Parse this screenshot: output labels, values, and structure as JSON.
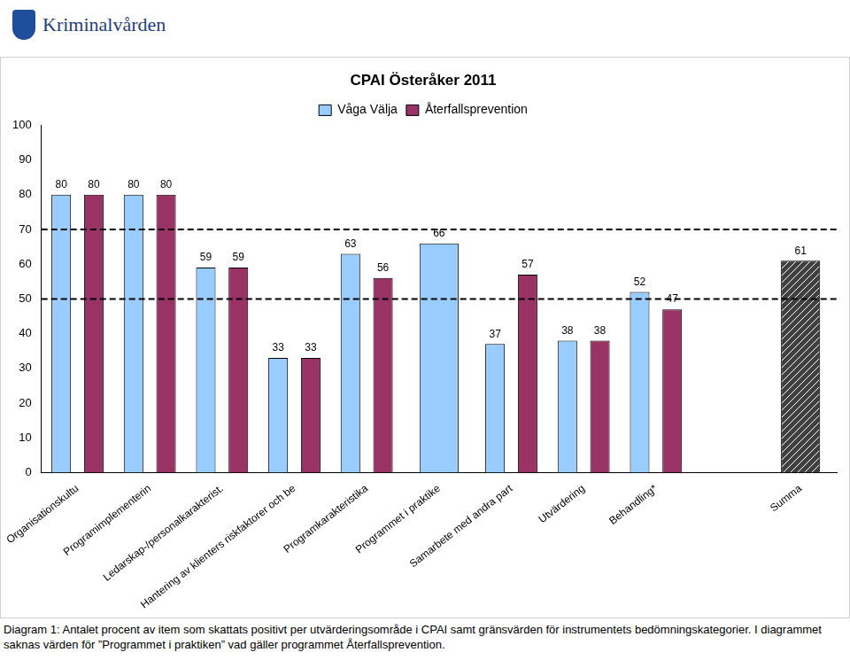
{
  "header": "Kriminalvården",
  "chart_data": {
    "type": "bar",
    "title": "CPAI Österåker 2011",
    "categories": [
      "Organisationskultu",
      "Programimplementerin",
      "Ledarskap-/personalkarakterist.",
      "Hantering av klienters riskfaktorer och be",
      "Programkarakteristika",
      "Programmet i praktike",
      "Samarbete med andra part",
      "Utvärdering",
      "Behandling*",
      null,
      "Summa"
    ],
    "series": [
      {
        "name": "Våga Välja",
        "color": "#99ccff",
        "values": [
          80,
          80,
          59,
          33,
          63,
          66,
          37,
          38,
          52,
          null,
          null
        ]
      },
      {
        "name": "Återfallsprevention",
        "color": "#993366",
        "colors": [
          "#993366",
          "#993366",
          "#993366",
          "#993366",
          "#993366",
          "#993366",
          "#993366",
          "#993366",
          "#993366",
          "#993366",
          "#404040"
        ],
        "values": [
          80,
          80,
          59,
          33,
          56,
          null,
          57,
          38,
          47,
          null,
          61
        ]
      }
    ],
    "ylim": [
      0,
      100
    ],
    "yticks": [
      0,
      10,
      20,
      30,
      40,
      50,
      60,
      70,
      80,
      90,
      100
    ],
    "grid": false,
    "legend": "top",
    "data_labels": true,
    "thresholds": [
      50,
      70
    ]
  },
  "caption": "Diagram 1: Antalet procent av item som skattats positivt per utvärderingsområde i CPAI samt gränsvärden för instrumentets bedömningskategorier. I diagrammet saknas värden för ”Programmet i praktiken” vad gäller programmet Återfallsprevention."
}
